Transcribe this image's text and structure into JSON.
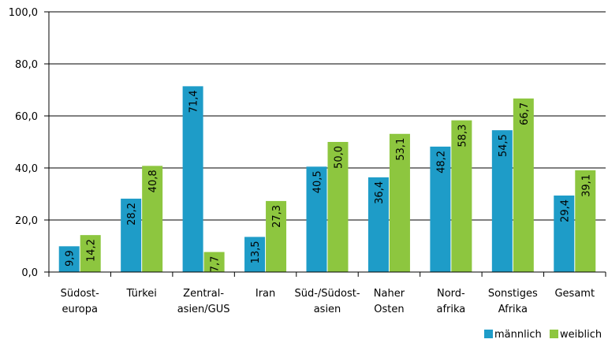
{
  "colors": {
    "maennlich": "#1e9cc8",
    "weiblich": "#8dc63f",
    "axis": "#000000",
    "grid": "#000000"
  },
  "chart_data": {
    "type": "bar",
    "categories": [
      [
        "Südost-",
        "europa"
      ],
      [
        "Türkei"
      ],
      [
        "Zentral-",
        "asien/GUS"
      ],
      [
        "Iran"
      ],
      [
        "Süd-/Südost-",
        "asien"
      ],
      [
        "Naher",
        "Osten"
      ],
      [
        "Nord-",
        "afrika"
      ],
      [
        "Sonstiges",
        "Afrika"
      ],
      [
        "Gesamt"
      ]
    ],
    "series": [
      {
        "name": "männlich",
        "values": [
          9.9,
          28.2,
          71.4,
          13.5,
          40.5,
          36.4,
          48.2,
          54.5,
          29.4
        ],
        "labels": [
          "9,9",
          "28,2",
          "71,4",
          "13,5",
          "40,5",
          "36,4",
          "48,2",
          "54,5",
          "29,4"
        ]
      },
      {
        "name": "weiblich",
        "values": [
          14.2,
          40.8,
          7.7,
          27.3,
          50.0,
          53.1,
          58.3,
          66.7,
          39.1
        ],
        "labels": [
          "14,2",
          "40,8",
          "7,7",
          "27,3",
          "50,0",
          "53,1",
          "58,3",
          "66,7",
          "39,1"
        ]
      }
    ],
    "ylim": [
      0,
      100
    ],
    "yticks": [
      0,
      20,
      40,
      60,
      80,
      100
    ],
    "ytick_labels": [
      "0,0",
      "20,0",
      "40,0",
      "60,0",
      "80,0",
      "100,0"
    ],
    "grid": true,
    "legend": "bottom-right"
  }
}
